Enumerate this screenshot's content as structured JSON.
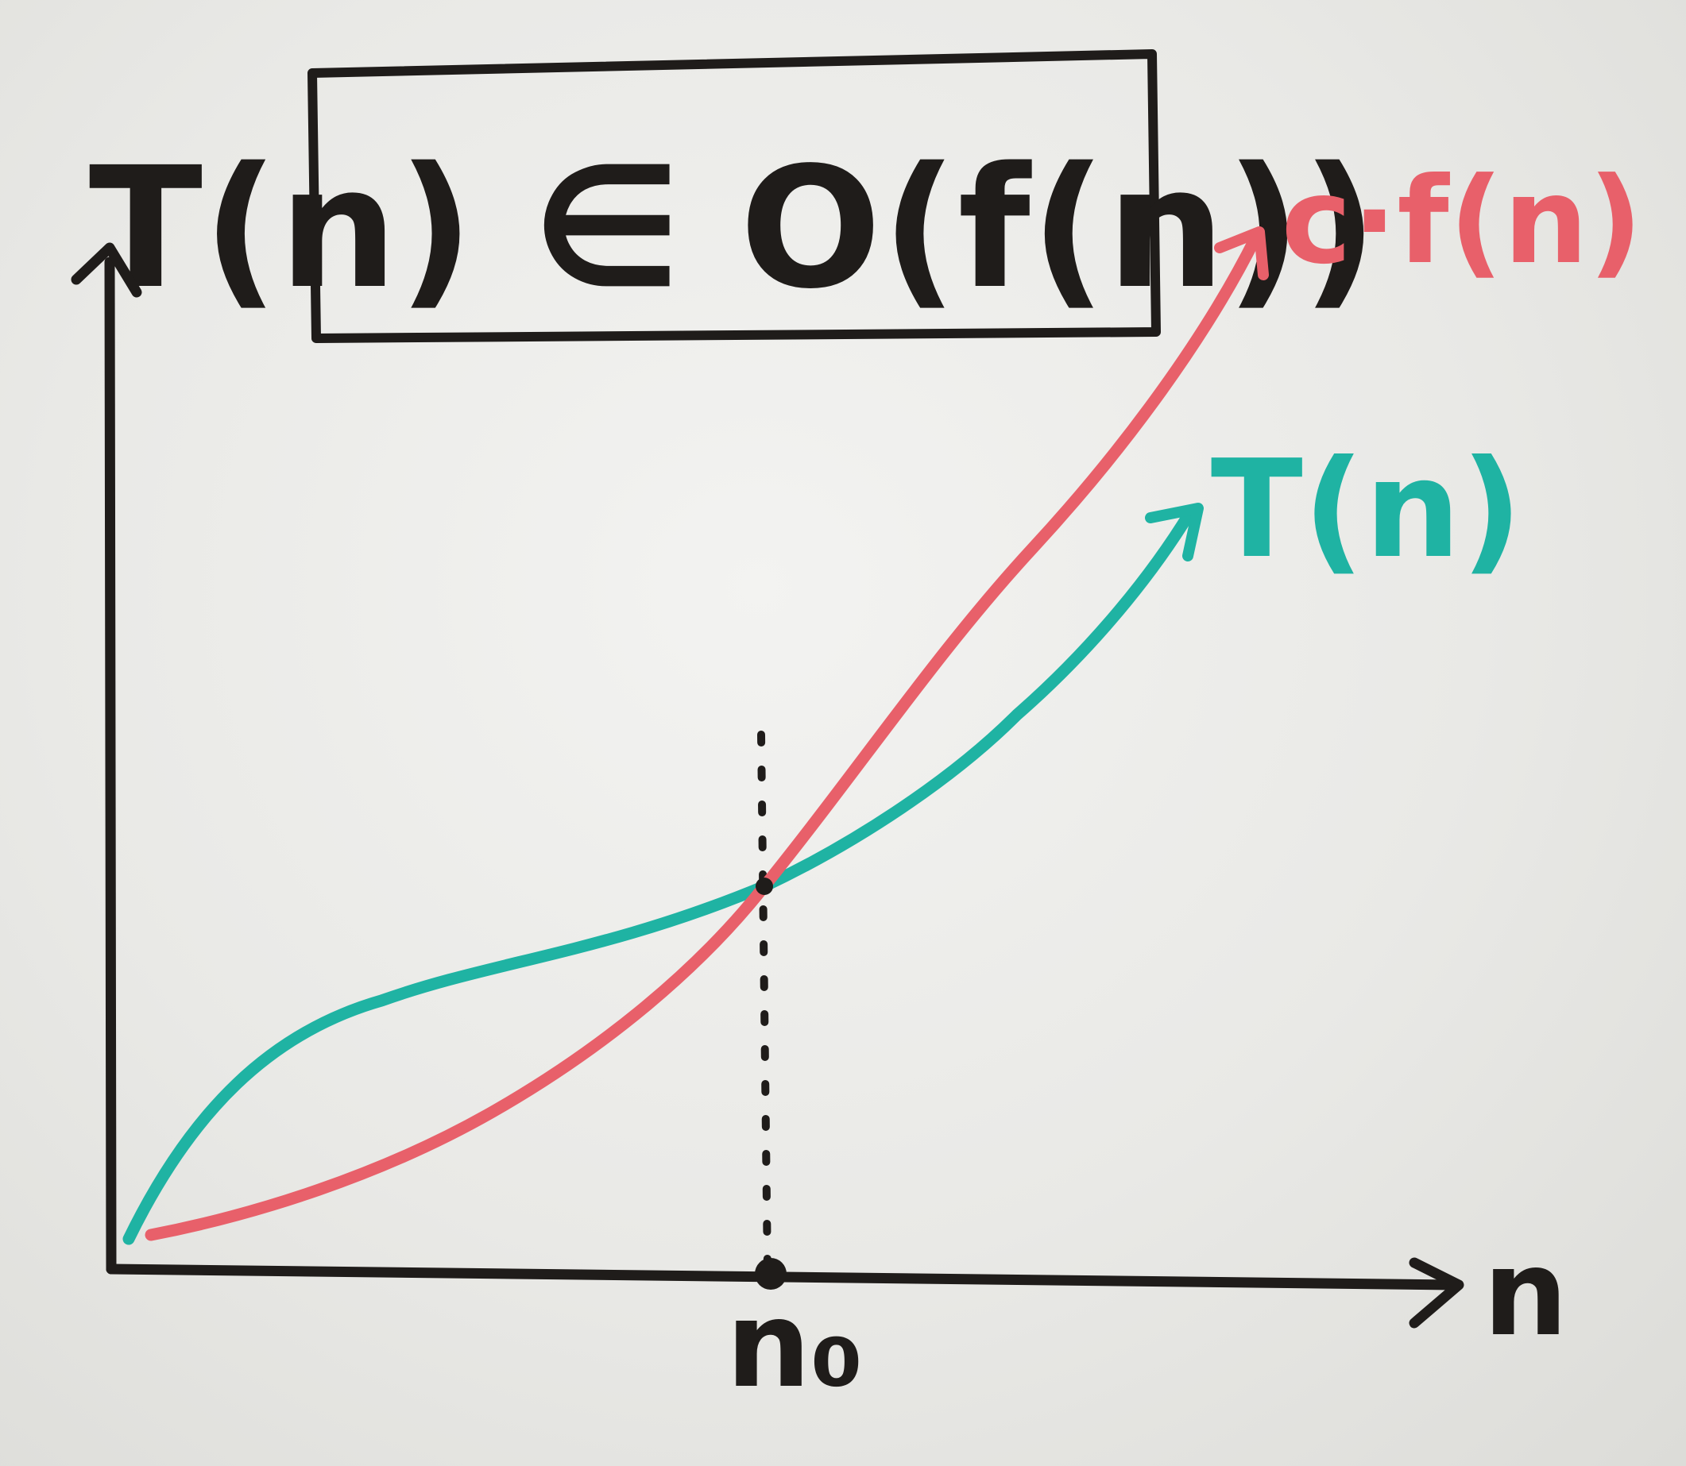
{
  "title": "T(n) ∈ O(f(n))",
  "labels": {
    "upper_curve": "c·f(n)",
    "lower_curve": "T(n)",
    "x_axis": "n",
    "threshold": "n₀"
  },
  "colors": {
    "ink": "#1f1c1a",
    "upper_curve": "#e8606a",
    "lower_curve": "#1fb3a3",
    "board": "#ececea"
  }
}
